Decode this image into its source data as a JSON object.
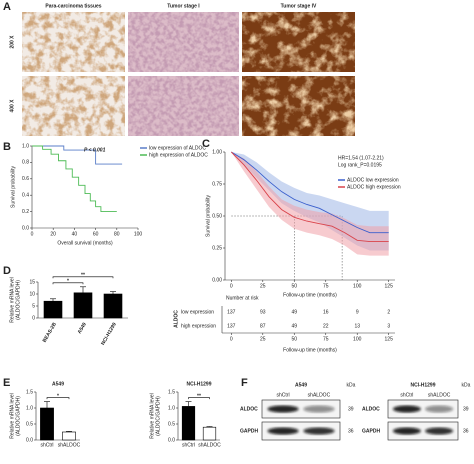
{
  "figure_a": {
    "panel": "A",
    "columns": [
      "Para-carcinoma tissues",
      "Tumor stage I",
      "Tumor stage IV"
    ],
    "rows": [
      "200 X",
      "400 X"
    ]
  },
  "chart_data": [
    {
      "type": "line",
      "panel": "B",
      "xlabel": "Overall survival (months)",
      "ylabel": "Survival probability",
      "annotation": "P < 0.001",
      "xlim": [
        0,
        100
      ],
      "ylim": [
        0,
        1
      ],
      "xticks": [
        0,
        20,
        40,
        60,
        80,
        100
      ],
      "yticks": [
        {
          "value": 0,
          "label": "0.0"
        },
        {
          "value": 0.2,
          "label": "0.2"
        },
        {
          "value": 0.4,
          "label": "0.4"
        },
        {
          "value": 0.6,
          "label": "0.6"
        },
        {
          "value": 0.8,
          "label": "0.8"
        },
        {
          "value": 1,
          "label": "1.0"
        }
      ],
      "legend": "upper right",
      "series": [
        {
          "name": "low expression of ALDOC",
          "color": "#5a7ec8",
          "x": [
            0,
            30,
            30,
            60,
            60,
            85
          ],
          "values": [
            1,
            1,
            0.95,
            0.95,
            0.78,
            0.78
          ]
        },
        {
          "name": "high expression of ALDOC",
          "color": "#4dbb55",
          "x": [
            0,
            10,
            10,
            18,
            18,
            25,
            25,
            32,
            32,
            38,
            38,
            44,
            44,
            50,
            50,
            55,
            55,
            60,
            60,
            65,
            65,
            80
          ],
          "values": [
            1,
            1,
            0.96,
            0.96,
            0.9,
            0.9,
            0.82,
            0.82,
            0.72,
            0.72,
            0.62,
            0.62,
            0.52,
            0.52,
            0.42,
            0.42,
            0.33,
            0.33,
            0.26,
            0.26,
            0.2,
            0.2
          ]
        }
      ]
    },
    {
      "type": "line",
      "panel": "C",
      "xlabel": "Follow-up time (months)",
      "ylabel": "Survival probability",
      "annotations": [
        "HR=1.54 (1.07-2.21)",
        "Log rank_P=0.0195"
      ],
      "xlim": [
        -5,
        130
      ],
      "ylim": [
        0,
        1
      ],
      "xticks": [
        0,
        25,
        50,
        75,
        100,
        125
      ],
      "yticks": [
        {
          "value": 0,
          "label": "0.00"
        },
        {
          "value": 0.25,
          "label": "0.25"
        },
        {
          "value": 0.5,
          "label": "0.50"
        },
        {
          "value": 0.75,
          "label": "0.75"
        },
        {
          "value": 1,
          "label": "1.00"
        }
      ],
      "legend": "upper right",
      "reference_y": 0.5,
      "median_x": [
        50,
        88
      ],
      "series": [
        {
          "name": "ALDOC low expression",
          "color": "#3a5fcd",
          "band_color": "#9fb6e6",
          "x": [
            0,
            10,
            20,
            30,
            40,
            50,
            60,
            70,
            80,
            90,
            100,
            110,
            125
          ],
          "values": [
            1,
            0.94,
            0.86,
            0.77,
            0.69,
            0.63,
            0.59,
            0.56,
            0.51,
            0.46,
            0.41,
            0.37,
            0.37
          ],
          "ci_low": [
            1,
            0.9,
            0.8,
            0.7,
            0.6,
            0.54,
            0.49,
            0.45,
            0.39,
            0.33,
            0.27,
            0.23,
            0.23
          ],
          "ci_high": [
            1,
            0.98,
            0.92,
            0.84,
            0.77,
            0.72,
            0.68,
            0.66,
            0.63,
            0.6,
            0.57,
            0.54,
            0.54
          ]
        },
        {
          "name": "ALDOC high expression",
          "color": "#d9434b",
          "band_color": "#f0a0a8",
          "x": [
            0,
            10,
            20,
            30,
            40,
            50,
            60,
            70,
            80,
            90,
            100,
            110,
            125
          ],
          "values": [
            1,
            0.9,
            0.78,
            0.65,
            0.55,
            0.49,
            0.46,
            0.44,
            0.42,
            0.37,
            0.31,
            0.3,
            0.3
          ],
          "ci_low": [
            1,
            0.85,
            0.71,
            0.57,
            0.47,
            0.4,
            0.37,
            0.35,
            0.32,
            0.27,
            0.2,
            0.19,
            0.19
          ],
          "ci_high": [
            1,
            0.95,
            0.85,
            0.73,
            0.63,
            0.58,
            0.55,
            0.53,
            0.52,
            0.48,
            0.43,
            0.42,
            0.42
          ]
        }
      ]
    },
    {
      "type": "bar",
      "panel": "D",
      "ylabel": [
        "Relative mRNA level",
        "(ALDOC/GAPDH)"
      ],
      "categories": [
        "BEAS-2B",
        "A549",
        "NCI-H1299"
      ],
      "values": [
        7,
        10.5,
        10
      ],
      "errors": [
        1,
        2.5,
        1
      ],
      "colors": [
        "#000000",
        "#000000",
        "#000000"
      ],
      "ylim": [
        0,
        15
      ],
      "yticks": [
        0,
        5,
        10,
        15
      ],
      "significance": [
        "*",
        "**"
      ]
    },
    {
      "type": "bar",
      "panel": "E",
      "title": "A549",
      "ylabel": [
        "Relative mRNA level",
        "(ALDOC/GAPDH)"
      ],
      "categories": [
        "shCtrl",
        "shALDOC"
      ],
      "values": [
        1,
        0.25
      ],
      "errors": [
        0.2,
        0.02
      ],
      "colors": [
        "#000000",
        "#ffffff"
      ],
      "ylim": [
        0,
        1.5
      ],
      "yticks": [
        {
          "value": 0,
          "label": "0.0"
        },
        {
          "value": 0.5,
          "label": "0.5"
        },
        {
          "value": 1,
          "label": "1.0"
        },
        {
          "value": 1.5,
          "label": "1.5"
        }
      ],
      "significance": [
        "*"
      ]
    },
    {
      "type": "bar",
      "title": "NCI-H1299",
      "ylabel": [
        "Relative mRNA level",
        "(ALDOC/GAPDH)"
      ],
      "categories": [
        "shCtrl",
        "shALDOC"
      ],
      "values": [
        1.05,
        0.4
      ],
      "errors": [
        0.15,
        0.02
      ],
      "colors": [
        "#000000",
        "#ffffff"
      ],
      "ylim": [
        0,
        1.5
      ],
      "yticks": [
        {
          "value": 0,
          "label": "0.0"
        },
        {
          "value": 0.5,
          "label": "0.5"
        },
        {
          "value": 1,
          "label": "1.0"
        },
        {
          "value": 1.5,
          "label": "1.5"
        }
      ],
      "significance": [
        "**"
      ]
    }
  ],
  "risk_table": {
    "title": "Number at risk",
    "group_label": "ALDOC",
    "rows": [
      {
        "name": "low expression",
        "values": [
          137,
          93,
          49,
          16,
          9,
          2
        ]
      },
      {
        "name": "high expression",
        "values": [
          137,
          87,
          49,
          22,
          13,
          3
        ]
      }
    ],
    "xticks": [
      0,
      25,
      50,
      75,
      100,
      125
    ],
    "xlabel": "Follow-up time (months)"
  },
  "blots": {
    "panel": "F",
    "unit": "kDa",
    "groups": [
      {
        "title": "A549",
        "lanes": [
          "shCtrl",
          "shALDOC"
        ],
        "proteins": [
          "ALDOC",
          "GAPDH"
        ],
        "sizes": [
          39,
          36
        ]
      },
      {
        "title": "NCI-H1299",
        "lanes": [
          "shCtrl",
          "shALDOC"
        ],
        "proteins": [
          "ALDOC",
          "GAPDH"
        ],
        "sizes": [
          39,
          36
        ]
      }
    ]
  }
}
